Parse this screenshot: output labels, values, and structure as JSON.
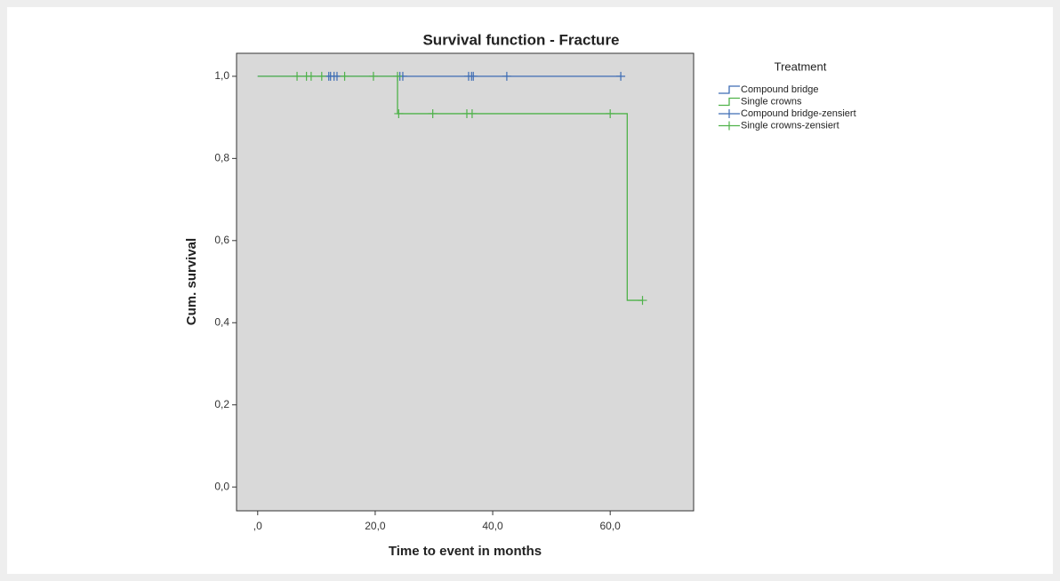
{
  "chart_data": {
    "type": "survival",
    "title": "Survival function - Fracture",
    "x_label": "Time to event in months",
    "y_label": "Cum. survival",
    "legend_title": "Treatment",
    "legend_position": "right",
    "xlim": [
      -3.6,
      74.2
    ],
    "ylim": [
      -0.058,
      1.056
    ],
    "xticks": [
      {
        "value": 0,
        "label": ",0"
      },
      {
        "value": 20,
        "label": "20,0"
      },
      {
        "value": 40,
        "label": "40,0"
      },
      {
        "value": 60,
        "label": "60,0"
      }
    ],
    "yticks": [
      {
        "value": 0,
        "label": "0,0"
      },
      {
        "value": 0.2,
        "label": "0,2"
      },
      {
        "value": 0.4,
        "label": "0,4"
      },
      {
        "value": 0.6,
        "label": "0,6"
      },
      {
        "value": 0.8,
        "label": "0,8"
      },
      {
        "value": 1,
        "label": "1,0"
      }
    ],
    "series": [
      {
        "name": "Compound bridge",
        "color": "#3d6cb4",
        "drawstyle": "steps-post",
        "x": [
          0,
          61.8
        ],
        "values": [
          1,
          1
        ]
      },
      {
        "name": "Single crowns",
        "color": "#4fb24a",
        "drawstyle": "steps-post",
        "x": [
          0,
          23.8,
          62.9,
          65.5
        ],
        "values": [
          1,
          0.909,
          0.4545,
          0.4545
        ]
      },
      {
        "name": "Compound bridge-zensiert",
        "color": "#3d6cb4",
        "marker": "+",
        "x": [
          12.1,
          12.4,
          13.0,
          13.5,
          24.2,
          24.7,
          35.9,
          36.4,
          36.7,
          42.4,
          61.8
        ],
        "values": [
          1,
          1,
          1,
          1,
          1,
          1,
          1,
          1,
          1,
          1,
          1
        ]
      },
      {
        "name": "Single crowns-zensiert",
        "color": "#4fb24a",
        "marker": "+",
        "x": [
          6.7,
          8.3,
          9.1,
          10.9,
          14.8,
          19.7,
          23.8,
          24.0,
          29.8,
          35.6,
          36.5,
          60.0,
          65.5
        ],
        "values": [
          1,
          1,
          1,
          1,
          1,
          1,
          1,
          0.909,
          0.909,
          0.909,
          0.909,
          0.909,
          0.4545
        ]
      }
    ]
  }
}
